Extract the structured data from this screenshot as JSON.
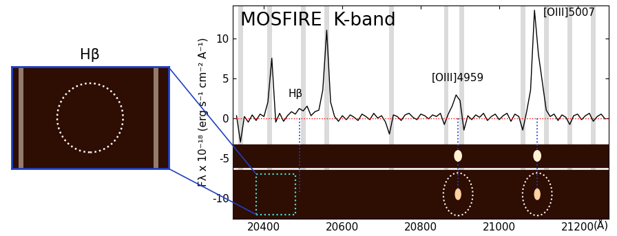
{
  "chart_data": {
    "type": "line",
    "title": "MOSFIRE  K-band",
    "x_label": "(Å)",
    "y_label": "Fλ x 10⁻¹⁸ (erg s⁻¹ cm⁻² A⁻¹)",
    "x": [
      20330,
      20340,
      20350,
      20360,
      20370,
      20380,
      20390,
      20400,
      20410,
      20420,
      20430,
      20440,
      20450,
      20460,
      20470,
      20480,
      20490,
      20500,
      20510,
      20520,
      20530,
      20540,
      20550,
      20560,
      20570,
      20580,
      20590,
      20600,
      20610,
      20620,
      20630,
      20640,
      20650,
      20660,
      20670,
      20680,
      20690,
      20700,
      20710,
      20720,
      20730,
      20740,
      20750,
      20760,
      20770,
      20780,
      20790,
      20800,
      20810,
      20820,
      20830,
      20840,
      20850,
      20860,
      20870,
      20880,
      20890,
      20900,
      20910,
      20920,
      20930,
      20940,
      20950,
      20960,
      20970,
      20980,
      20990,
      21000,
      21010,
      21020,
      21030,
      21040,
      21050,
      21060,
      21070,
      21080,
      21090,
      21100,
      21110,
      21120,
      21130,
      21140,
      21150,
      21160,
      21170,
      21180,
      21190,
      21200,
      21210,
      21220,
      21230,
      21240,
      21250,
      21260,
      21270
    ],
    "values": [
      0.3,
      -3.0,
      0.2,
      -0.5,
      0.4,
      -0.3,
      0.5,
      0.2,
      2.0,
      7.5,
      -0.5,
      0.6,
      -0.4,
      0.3,
      0.8,
      0.5,
      1.2,
      0.9,
      1.5,
      0.3,
      0.8,
      1.0,
      3.5,
      11.0,
      2.0,
      0.2,
      -0.4,
      0.3,
      -0.2,
      0.4,
      0.1,
      -0.3,
      0.5,
      0.2,
      -0.2,
      0.6,
      0.0,
      0.3,
      -0.5,
      -2.0,
      0.4,
      0.2,
      -0.3,
      0.4,
      0.6,
      0.1,
      -0.2,
      0.5,
      0.3,
      -0.1,
      0.4,
      0.2,
      0.6,
      -0.8,
      0.5,
      1.5,
      2.9,
      2.2,
      -1.5,
      0.3,
      -0.2,
      0.4,
      0.1,
      0.6,
      -0.3,
      0.2,
      0.5,
      -0.2,
      0.3,
      0.6,
      -0.4,
      0.5,
      0.2,
      -1.5,
      0.8,
      3.5,
      13.5,
      8.0,
      4.5,
      1.0,
      0.2,
      0.5,
      -0.3,
      0.4,
      0.1,
      -0.8,
      0.3,
      0.5,
      -0.2,
      0.3,
      0.6,
      -0.4,
      0.2,
      0.5,
      -0.1
    ],
    "color": "#000000",
    "xlim": [
      20320,
      21280
    ],
    "ylim": [
      -12.6,
      14.1
    ],
    "xticks": [
      20400,
      20600,
      20800,
      21000,
      21200
    ],
    "yticks": [
      -10,
      -5,
      0,
      5,
      10
    ],
    "zero_line": 0,
    "sky_lines": [
      20340,
      20415,
      20500,
      20560,
      20725,
      20865,
      20905,
      21060,
      21120,
      21180,
      21240
    ],
    "lines": [
      {
        "label": "Hβ",
        "x": 20490
      },
      {
        "label": "[OIII]4959",
        "x": 20895
      },
      {
        "label": "[OIII]5007",
        "x": 21097
      }
    ],
    "inset_title": "Hβ"
  }
}
